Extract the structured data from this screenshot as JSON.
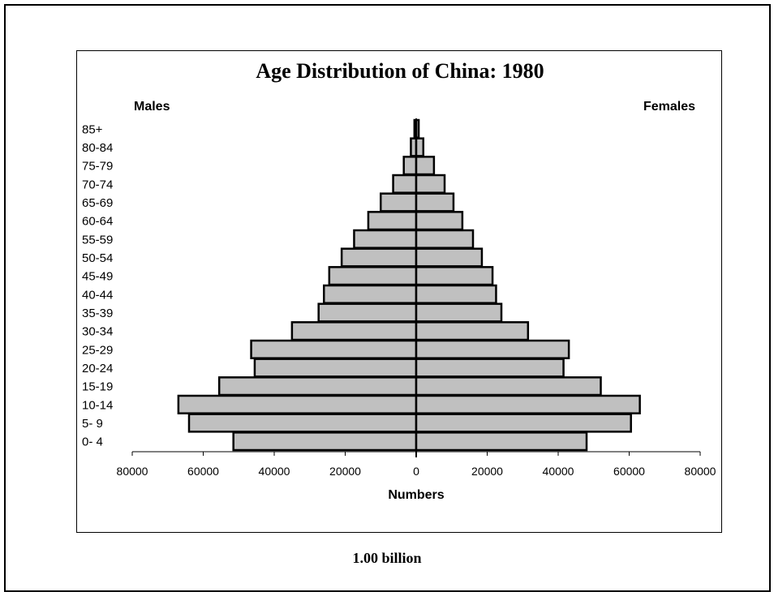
{
  "chart_data": {
    "type": "bar",
    "orientation": "horizontal-pyramid",
    "title": "Age Distribution of China: 1980",
    "left_label": "Males",
    "right_label": "Females",
    "xlabel": "Numbers",
    "xlim": [
      -80000,
      80000
    ],
    "x_ticks": [
      -80000,
      -60000,
      -40000,
      -20000,
      0,
      20000,
      40000,
      60000,
      80000
    ],
    "x_tick_labels": [
      "80000",
      "60000",
      "40000",
      "20000",
      "0",
      "20000",
      "40000",
      "60000",
      "80000"
    ],
    "categories": [
      "0- 4",
      "5- 9",
      "10-14",
      "15-19",
      "20-24",
      "25-29",
      "30-34",
      "35-39",
      "40-44",
      "45-49",
      "50-54",
      "55-59",
      "60-64",
      "65-69",
      "70-74",
      "75-79",
      "80-84",
      "85+"
    ],
    "series": [
      {
        "name": "Males",
        "values": [
          51500,
          64000,
          67000,
          55500,
          45500,
          46500,
          35000,
          27500,
          26000,
          24500,
          21000,
          17500,
          13500,
          10000,
          6500,
          3500,
          1500,
          500
        ]
      },
      {
        "name": "Females",
        "values": [
          48000,
          60500,
          63000,
          52000,
          41500,
          43000,
          31500,
          24000,
          22500,
          21500,
          18500,
          16000,
          13000,
          10500,
          8000,
          5000,
          2000,
          700
        ]
      }
    ],
    "bar_color": "#c0c0c0",
    "grid": false
  },
  "caption": "1.00 billion"
}
